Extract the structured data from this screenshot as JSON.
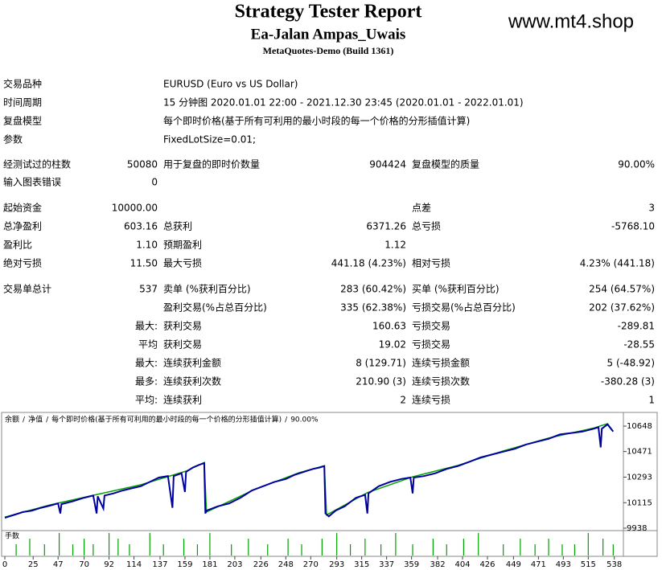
{
  "header": {
    "title": "Strategy Tester Report",
    "subtitle": "Ea-Jalan Ampas_Uwais",
    "build": "MetaQuotes-Demo (Build 1361)",
    "watermark": "www.mt4.shop"
  },
  "table": {
    "rows": [
      [
        "交易品种",
        null,
        "EURUSD (Euro vs US Dollar)"
      ],
      [
        "时间周期",
        null,
        "15 分钟图 2020.01.01 22:00 - 2021.12.30 23:45 (2020.01.01 - 2022.01.01)"
      ],
      [
        "复盘模型",
        null,
        "每个即时价格(基于所有可利用的最小时段的每一个价格的分形插值计算)"
      ],
      [
        "参数",
        null,
        "FixedLotSize=0.01;"
      ],
      [
        "经测试过的柱数",
        "50080",
        "用于复盘的即时价数量",
        "904424",
        "复盘模型的质量",
        "90.00%"
      ],
      [
        "输入图表错误",
        "0"
      ],
      [
        "起始资金",
        "10000.00",
        null,
        null,
        "点差",
        "3"
      ],
      [
        "总净盈利",
        "603.16",
        "总获利",
        "6371.26",
        "总亏损",
        "-5768.10"
      ],
      [
        "盈利比",
        "1.10",
        "预期盈利",
        "1.12"
      ],
      [
        "绝对亏损",
        "11.50",
        "最大亏损",
        "441.18 (4.23%)",
        "相对亏损",
        "4.23% (441.18)"
      ],
      [
        "交易单总计",
        "537",
        "卖单 (%获利百分比)",
        "283 (60.42%)",
        "买单 (%获利百分比)",
        "254 (64.57%)"
      ],
      [
        null,
        null,
        "盈利交易(%占总百分比)",
        "335 (62.38%)",
        "亏损交易(%占总百分比)",
        "202 (37.62%)"
      ],
      [
        null,
        "最大:",
        "获利交易",
        "160.63",
        "亏损交易",
        "-289.81"
      ],
      [
        null,
        "平均",
        "获利交易",
        "19.02",
        "亏损交易",
        "-28.55"
      ],
      [
        null,
        "最大:",
        "连续获利金额",
        "8 (129.71)",
        "连续亏损金额",
        "5 (-48.92)"
      ],
      [
        null,
        "最多:",
        "连续获利次数",
        "210.90 (3)",
        "连续亏损次数",
        "-380.28 (3)"
      ],
      [
        null,
        "平均:",
        "连续获利",
        "2",
        "连续亏损",
        "1"
      ]
    ]
  },
  "chart_data": {
    "type": "line",
    "model_label": "每个即时价格(基于所有可利用的最小时段的每一个价格的分形插值计算)",
    "quality": "90.00%",
    "legend_separator": "/",
    "xlim": [
      0,
      546
    ],
    "xticks": [
      0,
      25,
      47,
      70,
      92,
      114,
      137,
      159,
      181,
      203,
      226,
      248,
      270,
      293,
      315,
      337,
      359,
      382,
      404,
      426,
      449,
      471,
      493,
      515,
      538
    ],
    "ylim": [
      9921,
      10732
    ],
    "yticks": [
      10648,
      10471,
      10293,
      10115,
      9938
    ],
    "series": [
      {
        "name": "余额",
        "color": "#0000a0",
        "x": [
          0,
          8,
          16,
          24,
          32,
          40,
          47,
          49,
          50,
          60,
          70,
          78,
          81,
          82,
          87,
          88,
          96,
          104,
          112,
          120,
          128,
          136,
          144,
          148,
          149,
          156,
          159,
          160,
          166,
          172,
          176,
          177,
          178,
          188,
          198,
          208,
          218,
          228,
          238,
          248,
          256,
          264,
          272,
          278,
          282,
          283,
          286,
          292,
          300,
          310,
          318,
          320,
          321,
          330,
          340,
          350,
          358,
          360,
          361,
          370,
          380,
          390,
          400,
          410,
          420,
          430,
          440,
          450,
          460,
          470,
          480,
          490,
          500,
          510,
          520,
          524,
          526,
          527,
          532,
          537
        ],
        "values": [
          10010,
          10030,
          10050,
          10060,
          10080,
          10095,
          10110,
          10040,
          10105,
          10125,
          10150,
          10165,
          10040,
          10160,
          10075,
          10165,
          10180,
          10200,
          10215,
          10230,
          10260,
          10290,
          10300,
          10080,
          10300,
          10320,
          10190,
          10330,
          10360,
          10380,
          10390,
          10040,
          10060,
          10090,
          10110,
          10150,
          10200,
          10230,
          10260,
          10280,
          10310,
          10330,
          10350,
          10360,
          10370,
          10040,
          10020,
          10060,
          10090,
          10150,
          10170,
          10040,
          10180,
          10230,
          10260,
          10280,
          10290,
          10180,
          10290,
          10300,
          10320,
          10350,
          10370,
          10400,
          10430,
          10450,
          10470,
          10490,
          10520,
          10540,
          10560,
          10590,
          10600,
          10610,
          10630,
          10640,
          10500,
          10630,
          10660,
          10610
        ]
      },
      {
        "name": "净值",
        "color": "#00a000",
        "x": [
          0,
          40,
          80,
          120,
          160,
          176,
          178,
          220,
          260,
          282,
          284,
          320,
          360,
          400,
          440,
          480,
          520,
          532,
          537
        ],
        "values": [
          10015,
          10100,
          10170,
          10240,
          10335,
          10395,
          10050,
          10205,
          10325,
          10372,
          10030,
          10185,
          10295,
          10375,
          10475,
          10565,
          10635,
          10665,
          10612
        ]
      }
    ],
    "volume": {
      "label": "手数",
      "color": "#00a000",
      "x": [
        10,
        22,
        35,
        48,
        60,
        70,
        78,
        92,
        100,
        110,
        128,
        140,
        158,
        170,
        181,
        200,
        215,
        232,
        250,
        262,
        280,
        293,
        305,
        318,
        332,
        345,
        360,
        378,
        390,
        405,
        418,
        440,
        455,
        468,
        480,
        492,
        503,
        515,
        528,
        537
      ],
      "values": [
        2,
        3,
        2,
        4,
        2,
        3,
        2,
        4,
        3,
        2,
        4,
        2,
        3,
        2,
        4,
        2,
        3,
        2,
        3,
        2,
        3,
        4,
        2,
        3,
        2,
        4,
        2,
        3,
        2,
        3,
        4,
        2,
        3,
        2,
        3,
        2,
        2,
        4,
        3,
        2
      ]
    }
  }
}
